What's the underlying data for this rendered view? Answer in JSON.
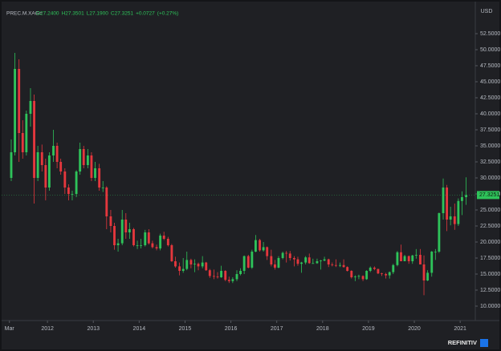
{
  "chart_data": {
    "type": "candlestick",
    "symbol": "PREC.M.XAG=",
    "ohlc_header": [
      "O27.2400",
      "H27.3501",
      "L27.1900",
      "C27.3251",
      "+0.0727",
      "(+0.27%)"
    ],
    "currency": "USD",
    "brand": "REFINITIV",
    "up_color": "#2ec35a",
    "down_color": "#e5373d",
    "grid": false,
    "xlim": [
      2011.0,
      2021.33
    ],
    "xticks": [
      {
        "value": 2011.17,
        "label": "Mar"
      },
      2012,
      2013,
      2014,
      2015,
      2016,
      2017,
      2018,
      2019,
      2020,
      2021
    ],
    "ylim": [
      7.75,
      55.5
    ],
    "yticks": [
      {
        "value": 10,
        "label": "10.0000"
      },
      {
        "value": 12.5,
        "label": "12.5000"
      },
      {
        "value": 15,
        "label": "15.0000"
      },
      {
        "value": 17.5,
        "label": "17.5000"
      },
      {
        "value": 20,
        "label": "20.0000"
      },
      {
        "value": 22.5,
        "label": "22.5000"
      },
      {
        "value": 25,
        "label": "25.0000"
      },
      {
        "value": 27.5,
        "label": "27.5000"
      },
      {
        "value": 30,
        "label": "30.0000"
      },
      {
        "value": 32.5,
        "label": "32.5000"
      },
      {
        "value": 35,
        "label": "35.0000"
      },
      {
        "value": 37.5,
        "label": "37.5000"
      },
      {
        "value": 40,
        "label": "40.0000"
      },
      {
        "value": 42.5,
        "label": "42.5000"
      },
      {
        "value": 45,
        "label": "45.0000"
      },
      {
        "value": 47.5,
        "label": "47.5000"
      },
      {
        "value": 50,
        "label": "50.0000"
      },
      {
        "value": 52.5,
        "label": "52.5000"
      }
    ],
    "x": [
      2011.21,
      2011.29,
      2011.38,
      2011.46,
      2011.54,
      2011.63,
      2011.71,
      2011.79,
      2011.88,
      2011.96,
      2012.04,
      2012.13,
      2012.21,
      2012.29,
      2012.38,
      2012.46,
      2012.54,
      2012.63,
      2012.71,
      2012.79,
      2012.88,
      2012.96,
      2013.04,
      2013.13,
      2013.21,
      2013.29,
      2013.38,
      2013.46,
      2013.54,
      2013.63,
      2013.71,
      2013.79,
      2013.88,
      2013.96,
      2014.04,
      2014.13,
      2014.21,
      2014.29,
      2014.38,
      2014.46,
      2014.54,
      2014.63,
      2014.71,
      2014.79,
      2014.88,
      2014.96,
      2015.04,
      2015.13,
      2015.21,
      2015.29,
      2015.38,
      2015.46,
      2015.54,
      2015.63,
      2015.71,
      2015.79,
      2015.88,
      2015.96,
      2016.04,
      2016.13,
      2016.21,
      2016.29,
      2016.38,
      2016.46,
      2016.54,
      2016.63,
      2016.71,
      2016.79,
      2016.88,
      2016.96,
      2017.04,
      2017.13,
      2017.21,
      2017.29,
      2017.38,
      2017.46,
      2017.54,
      2017.63,
      2017.71,
      2017.79,
      2017.88,
      2017.96,
      2018.04,
      2018.13,
      2018.21,
      2018.29,
      2018.38,
      2018.46,
      2018.54,
      2018.63,
      2018.71,
      2018.79,
      2018.88,
      2018.96,
      2019.04,
      2019.13,
      2019.21,
      2019.29,
      2019.38,
      2019.46,
      2019.54,
      2019.63,
      2019.71,
      2019.79,
      2019.88,
      2019.96,
      2020.04,
      2020.13,
      2020.21,
      2020.29,
      2020.38,
      2020.46,
      2020.54,
      2020.63,
      2020.71,
      2020.79,
      2020.88,
      2020.96,
      2021.04,
      2021.13
    ],
    "open": [
      30,
      34,
      47,
      37,
      34,
      40,
      42,
      30,
      34,
      32,
      28.5,
      33.5,
      35,
      32.5,
      31,
      28.5,
      27.5,
      27.5,
      31,
      34.5,
      32,
      33.5,
      30,
      31.5,
      28.5,
      28.5,
      24,
      22.5,
      19.5,
      19.8,
      23.5,
      21.5,
      22,
      19.5,
      19.5,
      19.5,
      21.5,
      19.8,
      19.2,
      19,
      21,
      20.5,
      19.5,
      17,
      16.2,
      15.5,
      15.8,
      17.2,
      16.5,
      16.6,
      16.2,
      16.8,
      15.6,
      14.7,
      14.6,
      14.5,
      15.5,
      14.1,
      13.9,
      14.2,
      15,
      15.5,
      17.8,
      16,
      18.5,
      20.3,
      18.7,
      19.2,
      17.8,
      16.5,
      16,
      17.5,
      18.3,
      18.2,
      17.5,
      17.3,
      16.6,
      16.8,
      17.6,
      16.7,
      16.7,
      17,
      17.1,
      17.3,
      16.5,
      16.4,
      16.3,
      16.4,
      16.1,
      15.5,
      14.5,
      14.6,
      14.7,
      14.2,
      15.5,
      16,
      15.8,
      15.1,
      15,
      14.8,
      15.3,
      16.4,
      18.4,
      17,
      17.8,
      17,
      17.9,
      18,
      16.5,
      14,
      15.2,
      18.5,
      18.5,
      24.5,
      28.5,
      23.5,
      24,
      22.8,
      26.4,
      27
    ],
    "high": [
      36,
      49.5,
      48.5,
      39,
      40.5,
      44,
      43,
      35,
      35.2,
      33,
      34,
      37.5,
      35.5,
      33,
      31.5,
      29,
      28,
      31.2,
      35.5,
      35,
      34.5,
      34,
      32.5,
      32.2,
      29.5,
      28.7,
      25,
      23,
      20.5,
      25,
      24.5,
      23,
      22.2,
      20.2,
      20.5,
      21.9,
      22,
      20.2,
      19.6,
      21.3,
      21.6,
      20.8,
      19.7,
      17.7,
      16.8,
      17.5,
      18.5,
      17.4,
      17.3,
      16.8,
      17.8,
      16.9,
      15.8,
      15.7,
      15.3,
      16.3,
      15.6,
      14.6,
      14.5,
      15.6,
      15.9,
      17.9,
      18,
      18.8,
      21.1,
      20.5,
      20,
      19.3,
      18.8,
      17.2,
      17.8,
      18.5,
      18.6,
      18.6,
      17.8,
      17.7,
      16.9,
      17.8,
      18.2,
      17.4,
      17.4,
      17.2,
      17.7,
      17.4,
      16.8,
      17.3,
      16.8,
      17.3,
      16.2,
      15.6,
      14.8,
      14.9,
      14.8,
      15.6,
      16.2,
      16.2,
      15.8,
      15.2,
      15.2,
      15.4,
      16.6,
      18.6,
      19.6,
      18,
      17.9,
      18,
      18.9,
      18.9,
      17.9,
      15.6,
      18.6,
      18.9,
      24.6,
      29.9,
      28.9,
      25.5,
      26,
      26.8,
      27.9,
      30.1
    ],
    "low": [
      29.5,
      33.5,
      32.5,
      33,
      33.5,
      38,
      26,
      29.5,
      31,
      26.5,
      28,
      32.5,
      31.5,
      30.5,
      27.5,
      26.5,
      26.5,
      27,
      30.5,
      31.5,
      31.5,
      29.5,
      29.5,
      28,
      27.8,
      22,
      21.5,
      18.8,
      18.5,
      19.5,
      20.5,
      20.5,
      19.3,
      18.9,
      19,
      19.3,
      19.6,
      19,
      18.7,
      18.7,
      20.3,
      19.3,
      16.9,
      16,
      14.8,
      15.2,
      15.6,
      15.9,
      15.3,
      15.6,
      15.9,
      15.5,
      14.4,
      14.2,
      14.3,
      14.4,
      13.9,
      13.6,
      13.6,
      13.9,
      14.8,
      15,
      15.9,
      15.8,
      18.4,
      18.5,
      18.5,
      17.2,
      16.2,
      15.7,
      15.9,
      17.3,
      16.8,
      17.1,
      16.2,
      16.3,
      15.2,
      16.5,
      16.6,
      16.6,
      16.6,
      15.7,
      17,
      16.1,
      16.2,
      16.1,
      16.1,
      16,
      15.4,
      14.3,
      13.9,
      14.2,
      13.9,
      14.1,
      15.3,
      15.6,
      15,
      14.7,
      14.3,
      14.3,
      15,
      16.2,
      17,
      17,
      16.6,
      16.6,
      17.4,
      16.5,
      11.7,
      13.9,
      14.6,
      17.2,
      18.3,
      23.5,
      21.7,
      22.6,
      21.9,
      22.5,
      24.2,
      25.8
    ],
    "close": [
      34,
      47,
      37,
      34,
      40,
      42,
      30,
      34,
      32,
      28.5,
      33.5,
      35,
      32.5,
      31,
      28.5,
      27.5,
      27.5,
      31,
      34.5,
      32,
      33.5,
      30,
      31.5,
      28.5,
      28.5,
      24,
      22.5,
      19.5,
      19.8,
      23.5,
      21.5,
      22,
      19.5,
      19.5,
      19.5,
      21.5,
      19.8,
      19.2,
      19,
      21,
      20.5,
      19.5,
      17,
      16.2,
      15.5,
      15.8,
      17.2,
      16.5,
      16.6,
      16.2,
      16.8,
      15.6,
      14.7,
      14.6,
      14.5,
      15.5,
      14.1,
      13.9,
      14.2,
      15,
      15.5,
      17.8,
      16,
      18.5,
      20.3,
      18.7,
      19.2,
      17.8,
      16.5,
      16,
      17.5,
      18.3,
      18.2,
      17.5,
      17.3,
      16.6,
      16.8,
      17.6,
      16.7,
      16.7,
      17,
      17.1,
      17.3,
      16.5,
      16.4,
      16.3,
      16.4,
      16.1,
      15.5,
      14.5,
      14.6,
      14.7,
      14.2,
      15.5,
      16,
      15.8,
      15.1,
      15,
      14.8,
      15.3,
      16.4,
      18.4,
      17,
      17.8,
      17,
      17.9,
      18,
      16.5,
      14,
      15.2,
      18.5,
      18.5,
      24.5,
      28.5,
      23.5,
      24,
      22.8,
      26.4,
      27,
      27.3251
    ]
  }
}
